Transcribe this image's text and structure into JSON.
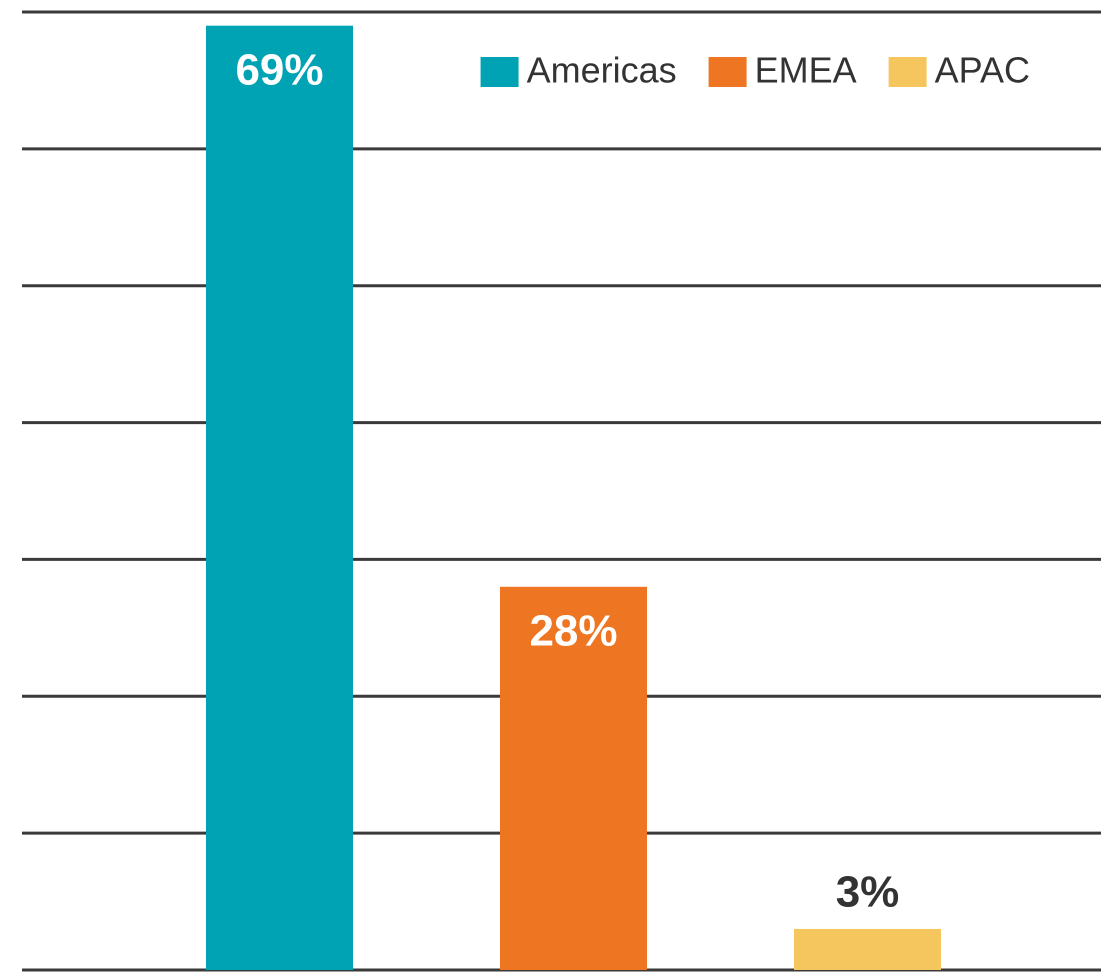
{
  "chart_data": {
    "type": "bar",
    "categories": [
      "Americas",
      "EMEA",
      "APAC"
    ],
    "values": [
      69,
      28,
      3
    ],
    "value_labels": [
      "69%",
      "28%",
      "3%"
    ],
    "colors": [
      "#00a3b4",
      "#ee7623",
      "#f5c55e"
    ],
    "ylim": [
      0,
      70
    ],
    "yticks": [
      0,
      10,
      20,
      30,
      40,
      50,
      60,
      70
    ],
    "grid": true,
    "legend": "top-right"
  }
}
